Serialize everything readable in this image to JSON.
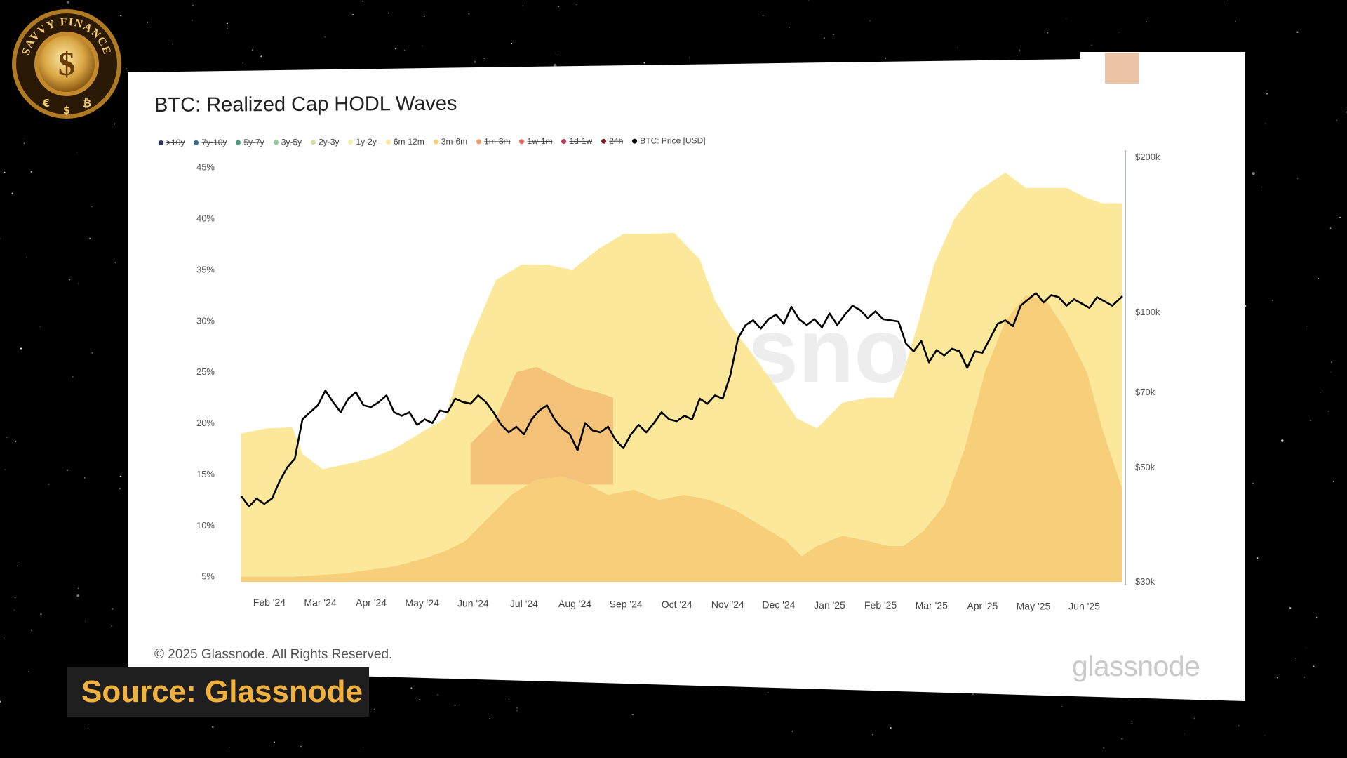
{
  "badge": {
    "ring_text": "SAVVY FINANCE",
    "center_symbol": "$",
    "bottom_symbols": [
      "€",
      "$",
      "₿"
    ]
  },
  "source_label": "Source: Glassnode",
  "card": {
    "copyright": "© 2025 Glassnode. All Rights Reserved.",
    "logo_text": "glassnode",
    "watermark_text": "glassnode"
  },
  "chart_data": {
    "type": "area",
    "title": "BTC: Realized Cap HODL Waves",
    "legend": [
      {
        "label": ">10y",
        "color": "#2c3360",
        "hidden": true
      },
      {
        "label": "7y-10y",
        "color": "#3b6a8f",
        "hidden": true
      },
      {
        "label": "5y-7y",
        "color": "#4a9a80",
        "hidden": true
      },
      {
        "label": "3y-5y",
        "color": "#8cc79a",
        "hidden": true
      },
      {
        "label": "2y-3y",
        "color": "#d7e0a0",
        "hidden": true
      },
      {
        "label": "1y-2y",
        "color": "#f7efa8",
        "hidden": true
      },
      {
        "label": "6m-12m",
        "color": "#fbe89a",
        "hidden": false
      },
      {
        "label": "3m-6m",
        "color": "#f7cf7a",
        "hidden": false
      },
      {
        "label": "1m-3m",
        "color": "#ee9a60",
        "hidden": true
      },
      {
        "label": "1w-1m",
        "color": "#de6a5a",
        "hidden": true
      },
      {
        "label": "1d-1w",
        "color": "#b73a55",
        "hidden": true
      },
      {
        "label": "24h",
        "color": "#7a1b22",
        "hidden": true
      },
      {
        "label": "BTC: Price [USD]",
        "color": "#000000",
        "hidden": false
      }
    ],
    "x_ticks": [
      "Feb '24",
      "Mar '24",
      "Apr '24",
      "May '24",
      "Jun '24",
      "Jul '24",
      "Aug '24",
      "Sep '24",
      "Oct '24",
      "Nov '24",
      "Dec '24",
      "Jan '25",
      "Feb '25",
      "Mar '25",
      "Apr '25",
      "May '25",
      "Jun '25"
    ],
    "y_left_ticks": [
      "5%",
      "10%",
      "15%",
      "20%",
      "25%",
      "30%",
      "35%",
      "40%",
      "45%"
    ],
    "y_left_range": [
      4.5,
      46
    ],
    "y_right_ticks": [
      "$30k",
      "$50k",
      "$70k",
      "$100k",
      "$200k"
    ],
    "y_right_range_log": [
      30000,
      200000
    ],
    "x_range_months": [
      0,
      17.3
    ],
    "series": [
      {
        "name": "6m-12m (top of stacked area)",
        "color": "#fbe89a",
        "x": [
          0,
          0.5,
          1.0,
          1.2,
          1.6,
          2.5,
          3.0,
          4.0,
          4.4,
          5.0,
          5.5,
          6.0,
          6.5,
          7.0,
          7.5,
          8.0,
          8.5,
          9.0,
          9.3,
          9.6,
          10.0,
          10.5,
          10.9,
          11.3,
          11.8,
          12.3,
          12.8,
          13.0,
          13.3,
          13.6,
          14.0,
          14.4,
          15.0,
          15.4,
          15.8,
          16.2,
          16.6,
          16.9,
          17.3
        ],
        "values": [
          19.0,
          19.5,
          19.6,
          17.0,
          15.5,
          16.5,
          17.5,
          20.5,
          27.0,
          34.0,
          35.5,
          35.5,
          35.0,
          37.0,
          38.5,
          38.5,
          38.6,
          36.0,
          32.0,
          29.5,
          27.0,
          23.5,
          20.5,
          19.5,
          22.0,
          22.5,
          22.5,
          25.0,
          30.0,
          35.5,
          40.0,
          42.5,
          44.5,
          43.0,
          43.0,
          43.0,
          42.0,
          41.5,
          41.5
        ]
      },
      {
        "name": "3m-6m",
        "color": "#f7cf7a",
        "x": [
          0,
          1.0,
          2.0,
          3.0,
          3.6,
          4.0,
          4.4,
          4.8,
          5.3,
          5.8,
          6.3,
          6.8,
          7.2,
          7.7,
          8.2,
          8.7,
          9.2,
          9.7,
          10.2,
          10.7,
          11.0,
          11.3,
          11.8,
          12.3,
          12.7,
          13.0,
          13.4,
          13.8,
          14.2,
          14.6,
          15.0,
          15.4,
          15.8,
          16.2,
          16.6,
          16.9,
          17.3
        ],
        "values": [
          5.0,
          5.0,
          5.3,
          6.0,
          6.8,
          7.5,
          8.5,
          10.5,
          13.0,
          14.5,
          14.8,
          14.0,
          13.0,
          13.5,
          12.5,
          13.0,
          12.5,
          11.5,
          10.0,
          8.5,
          7.0,
          8.0,
          9.0,
          8.5,
          8.0,
          8.0,
          9.5,
          12.0,
          17.5,
          25.0,
          30.0,
          32.5,
          32.0,
          29.0,
          25.0,
          19.5,
          13.5
        ]
      },
      {
        "name": "3m-6m darker band (upper region)",
        "color": "#f5c27a",
        "x": [
          4.5,
          5.0,
          5.4,
          5.8,
          6.2,
          6.6,
          7.0,
          7.3
        ],
        "values": [
          18.0,
          20.5,
          25.0,
          25.5,
          24.5,
          23.5,
          23.0,
          22.5
        ]
      },
      {
        "name": "BTC: Price [USD]",
        "color": "#000000",
        "x": [
          0,
          0.15,
          0.3,
          0.45,
          0.6,
          0.75,
          0.9,
          1.05,
          1.2,
          1.35,
          1.5,
          1.65,
          1.8,
          1.95,
          2.1,
          2.25,
          2.4,
          2.55,
          2.7,
          2.85,
          3.0,
          3.15,
          3.3,
          3.45,
          3.6,
          3.75,
          3.9,
          4.05,
          4.2,
          4.35,
          4.5,
          4.65,
          4.8,
          4.95,
          5.1,
          5.25,
          5.4,
          5.55,
          5.7,
          5.85,
          6.0,
          6.15,
          6.3,
          6.45,
          6.6,
          6.75,
          6.9,
          7.05,
          7.2,
          7.35,
          7.5,
          7.65,
          7.8,
          7.95,
          8.1,
          8.25,
          8.4,
          8.55,
          8.7,
          8.85,
          9.0,
          9.15,
          9.3,
          9.45,
          9.6,
          9.75,
          9.9,
          10.05,
          10.2,
          10.35,
          10.5,
          10.65,
          10.8,
          10.95,
          11.1,
          11.25,
          11.4,
          11.55,
          11.7,
          11.85,
          12.0,
          12.15,
          12.3,
          12.45,
          12.6,
          12.75,
          12.9,
          13.05,
          13.2,
          13.35,
          13.5,
          13.65,
          13.8,
          13.95,
          14.1,
          14.25,
          14.4,
          14.55,
          14.7,
          14.85,
          15.0,
          15.15,
          15.3,
          15.45,
          15.6,
          15.75,
          15.9,
          16.05,
          16.2,
          16.35,
          16.5,
          16.65,
          16.8,
          16.95,
          17.1,
          17.3
        ],
        "values": [
          44000,
          42000,
          43500,
          42500,
          43500,
          47000,
          50000,
          52000,
          62000,
          64000,
          66000,
          70500,
          67000,
          64000,
          68000,
          70000,
          66000,
          65500,
          67000,
          69000,
          64000,
          63000,
          64000,
          60500,
          62000,
          61000,
          64500,
          64000,
          68000,
          67000,
          66500,
          69000,
          67000,
          64000,
          60500,
          58500,
          60000,
          58000,
          62000,
          64500,
          66000,
          62000,
          59500,
          58000,
          54000,
          61000,
          59000,
          58500,
          60000,
          56500,
          54500,
          58000,
          60500,
          58500,
          61000,
          64000,
          62000,
          61500,
          63000,
          62000,
          68000,
          66500,
          69000,
          68000,
          75500,
          89000,
          94500,
          96500,
          93000,
          97000,
          99000,
          95000,
          102500,
          97000,
          94500,
          97000,
          93500,
          99500,
          94500,
          99000,
          103000,
          101000,
          97500,
          100500,
          97000,
          96500,
          96000,
          87000,
          84000,
          88000,
          80000,
          84500,
          82500,
          85000,
          84000,
          78000,
          84000,
          83500,
          89000,
          95000,
          96500,
          94000,
          103000,
          106000,
          109000,
          104500,
          108000,
          107000,
          103000,
          106000,
          104000,
          102000,
          107000,
          105000,
          103000,
          107500
        ]
      }
    ]
  }
}
